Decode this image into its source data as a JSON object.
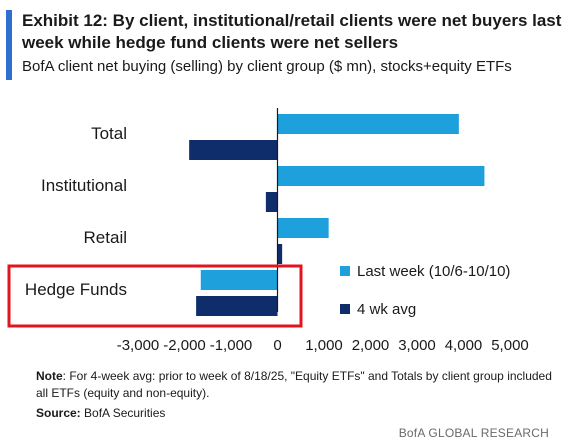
{
  "title": "Exhibit 12: By client, institutional/retail clients were net buyers last week while hedge fund clients were net sellers",
  "subtitle": "BofA client net buying (selling) by client group ($ mn), stocks+equity ETFs",
  "chart_data": {
    "type": "bar",
    "orientation": "horizontal",
    "categories": [
      "Total",
      "Institutional",
      "Retail",
      "Hedge Funds"
    ],
    "series": [
      {
        "name": "Last week (10/6-10/10)",
        "color": "#1ea0dc",
        "values": [
          3900,
          4450,
          1100,
          -1650
        ]
      },
      {
        "name": "4 wk avg",
        "color": "#0f2c6b",
        "values": [
          -1900,
          -250,
          100,
          -1750
        ]
      }
    ],
    "xlim": [
      -3000,
      5000
    ],
    "xticks": [
      "-3,000",
      "-2,000",
      "-1,000",
      "0",
      "1,000",
      "2,000",
      "3,000",
      "4,000",
      "5,000"
    ],
    "xtick_values": [
      -3000,
      -2000,
      -1000,
      0,
      1000,
      2000,
      3000,
      4000,
      5000
    ],
    "legend_position": "bottom-right",
    "highlight_color": "#e0161f",
    "highlight_category": "Hedge Funds"
  },
  "note": {
    "label": "Note",
    "text": ": For 4-week avg: prior to week of 8/18/25, \"Equity ETFs\" and Totals by client group included all ETFs (equity and non-equity)."
  },
  "source": {
    "label": "Source:",
    "text": " BofA Securities"
  },
  "footer": "BofA GLOBAL RESEARCH"
}
